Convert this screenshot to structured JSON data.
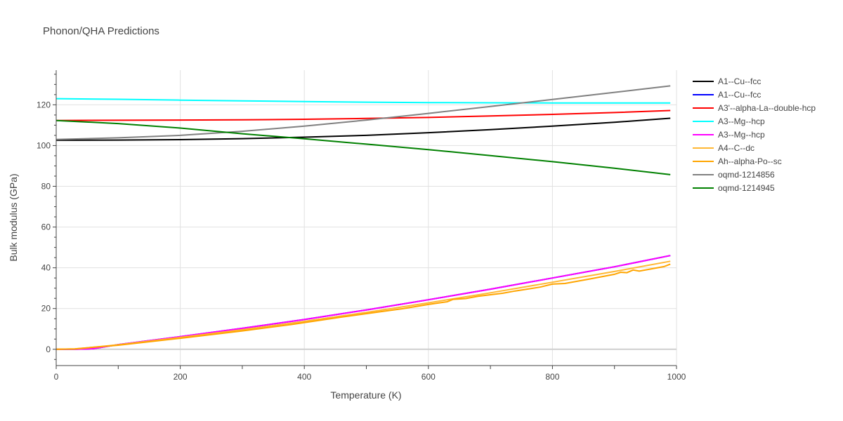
{
  "chart_data": {
    "type": "line",
    "title": "Phonon/QHA Predictions",
    "xlabel": "Temperature (K)",
    "ylabel": "Bulk modulus (GPa)",
    "xlim": [
      0,
      1000
    ],
    "ylim": [
      -8,
      137
    ],
    "xticks": [
      0,
      200,
      400,
      600,
      800,
      1000
    ],
    "yticks": [
      0,
      20,
      40,
      60,
      80,
      100,
      120
    ],
    "grid": true,
    "legend_position": "right",
    "series": [
      {
        "name": "A1--Cu--fcc",
        "color": "#000000",
        "x": [
          0,
          100,
          200,
          300,
          400,
          500,
          600,
          700,
          800,
          900,
          990
        ],
        "y": [
          102.6,
          102.7,
          102.9,
          103.4,
          104.1,
          105.0,
          106.3,
          107.8,
          109.5,
          111.4,
          113.4
        ]
      },
      {
        "name": "A1--Cu--fcc",
        "color": "#0000ff",
        "x": [
          0,
          30,
          60,
          100,
          200,
          300,
          400,
          500,
          600,
          700,
          800,
          900,
          990
        ],
        "y": [
          0,
          0,
          0.3,
          2.3,
          6.2,
          10.3,
          14.6,
          19.3,
          24.3,
          29.5,
          35.0,
          40.5,
          46.0
        ]
      },
      {
        "name": "A3'--alpha-La--double-hcp",
        "color": "#ff0000",
        "x": [
          0,
          100,
          200,
          300,
          400,
          500,
          600,
          700,
          800,
          900,
          990
        ],
        "y": [
          112.3,
          112.4,
          112.5,
          112.6,
          112.9,
          113.3,
          113.8,
          114.5,
          115.3,
          116.2,
          117.2
        ]
      },
      {
        "name": "A3--Mg--hcp",
        "color": "#00ffff",
        "x": [
          0,
          100,
          200,
          300,
          400,
          500,
          600,
          700,
          800,
          900,
          990
        ],
        "y": [
          123.0,
          122.7,
          122.3,
          121.9,
          121.6,
          121.3,
          121.1,
          121.0,
          120.9,
          120.9,
          120.9
        ]
      },
      {
        "name": "A3--Mg--hcp",
        "color": "#ff00ff",
        "x": [
          0,
          30,
          60,
          100,
          200,
          300,
          400,
          500,
          600,
          700,
          800,
          900,
          990
        ],
        "y": [
          0,
          0,
          0.3,
          2.3,
          6.2,
          10.3,
          14.6,
          19.3,
          24.3,
          29.5,
          35.0,
          40.5,
          46.0
        ]
      },
      {
        "name": "A4--C--dc",
        "color": "#ffb733",
        "x": [
          0,
          30,
          60,
          100,
          200,
          300,
          400,
          500,
          600,
          700,
          800,
          900,
          990
        ],
        "y": [
          0,
          0.2,
          1.0,
          2.2,
          5.8,
          9.6,
          13.7,
          18.1,
          22.8,
          27.7,
          32.9,
          38.2,
          43.2
        ]
      },
      {
        "name": "Ah--alpha-Po--sc",
        "color": "#ffa500",
        "x": [
          0,
          30,
          60,
          100,
          200,
          300,
          380,
          420,
          460,
          500,
          560,
          600,
          630,
          640,
          660,
          680,
          720,
          740,
          780,
          800,
          820,
          860,
          900,
          910,
          920,
          930,
          940,
          960,
          980,
          990
        ],
        "y": [
          0,
          0.2,
          1.0,
          2.0,
          5.4,
          9.0,
          12.2,
          14.0,
          15.8,
          17.5,
          20.0,
          22.0,
          23.3,
          24.5,
          24.9,
          26.0,
          27.5,
          28.6,
          30.5,
          32.0,
          32.3,
          34.5,
          36.8,
          37.8,
          37.6,
          38.9,
          38.4,
          39.5,
          40.6,
          41.8
        ]
      },
      {
        "name": "oqmd-1214856",
        "color": "#808080",
        "x": [
          0,
          100,
          200,
          300,
          400,
          500,
          600,
          700,
          800,
          900,
          990
        ],
        "y": [
          103.0,
          103.8,
          105.0,
          107.0,
          109.5,
          112.5,
          115.8,
          119.2,
          122.6,
          126.1,
          129.3
        ]
      },
      {
        "name": "oqmd-1214945",
        "color": "#008000",
        "x": [
          0,
          100,
          200,
          300,
          400,
          500,
          600,
          700,
          800,
          900,
          990
        ],
        "y": [
          112.3,
          110.8,
          108.6,
          105.8,
          103.3,
          100.7,
          98.0,
          95.1,
          92.1,
          88.9,
          85.7
        ]
      }
    ]
  }
}
